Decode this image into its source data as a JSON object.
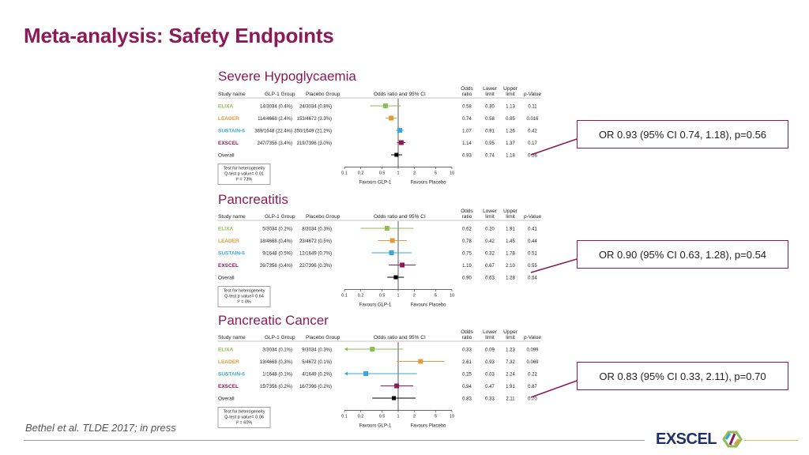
{
  "title": "Meta-analysis: Safety Endpoints",
  "footer": {
    "citation": "Bethel et al.  TLDE 2017; in press",
    "logo_text": "EXSCEL"
  },
  "colors": {
    "accent": "#8B1A56",
    "elixa": "#8fbd55",
    "leader": "#e39a3a",
    "sustain": "#3aa6d6",
    "exscel": "#8B1A56",
    "overall": "#000000"
  },
  "headers": {
    "study": "Study name",
    "glp": "GLP-1 Group",
    "placebo": "Placebo Group",
    "ci": "Odds ratio and 95% CI",
    "or1": "Odds",
    "or2": "ratio",
    "ll1": "Lower",
    "ll2": "limit",
    "ul1": "Upper",
    "ul2": "limit",
    "p": "p-Value"
  },
  "ticks": [
    "0.1",
    "0.2",
    "0.5",
    "1",
    "2",
    "5",
    "10"
  ],
  "favours": {
    "left": "Favours GLP-1",
    "right": "Favours Placebo"
  },
  "chart_data": [
    {
      "type": "forest",
      "title": "Severe Hypoglycaemia",
      "xscale": "log",
      "xlim": [
        0.1,
        10
      ],
      "studies": [
        {
          "name": "ELIXA",
          "color": "elixa",
          "glp": "14/3034 (0.4%)",
          "placebo": "24/3034 (0.8%)",
          "or": 0.58,
          "ll": 0.3,
          "ul": 1.13,
          "p": "0.11",
          "or_text": "0.58",
          "ll_text": "0.30",
          "ul_text": "1.13"
        },
        {
          "name": "LEADER",
          "color": "leader",
          "glp": "114/4668 (2.4%)",
          "placebo": "153/4672 (3.3%)",
          "or": 0.74,
          "ll": 0.58,
          "ul": 0.95,
          "p": "0.016",
          "or_text": "0.74",
          "ll_text": "0.58",
          "ul_text": "0.95"
        },
        {
          "name": "SUSTAIN-6",
          "color": "sustain",
          "glp": "369/1648 (22.4%)",
          "placebo": "350/1649 (21.2%)",
          "or": 1.07,
          "ll": 0.91,
          "ul": 1.26,
          "p": "0.42",
          "or_text": "1.07",
          "ll_text": "0.91",
          "ul_text": "1.26"
        },
        {
          "name": "EXSCEL",
          "color": "exscel",
          "glp": "247/7356 (3.4%)",
          "placebo": "219/7396 (3.0%)",
          "or": 1.14,
          "ll": 0.95,
          "ul": 1.37,
          "p": "0.17",
          "or_text": "1.14",
          "ll_text": "0.95",
          "ul_text": "1.37"
        },
        {
          "name": "Overall",
          "color": "overall",
          "glp": "",
          "placebo": "",
          "or": 0.93,
          "ll": 0.74,
          "ul": 1.18,
          "p": "0.56",
          "or_text": "0.93",
          "ll_text": "0.74",
          "ul_text": "1.18"
        }
      ],
      "heterogeneity": [
        "Test for heterogeneity",
        "Q-test p value= 0.01",
        "I² = 73%"
      ],
      "callout": "OR 0.93 (95% CI 0.74, 1.18), p=0.56"
    },
    {
      "type": "forest",
      "title": "Pancreatitis",
      "xscale": "log",
      "xlim": [
        0.1,
        10
      ],
      "studies": [
        {
          "name": "ELIXA",
          "color": "elixa",
          "glp": "5/3034 (0.2%)",
          "placebo": "8/3034 (0.3%)",
          "or": 0.62,
          "ll": 0.2,
          "ul": 1.91,
          "p": "0.41",
          "or_text": "0.62",
          "ll_text": "0.20",
          "ul_text": "1.91"
        },
        {
          "name": "LEADER",
          "color": "leader",
          "glp": "18/4668 (0.4%)",
          "placebo": "23/4672 (0.5%)",
          "or": 0.78,
          "ll": 0.42,
          "ul": 1.45,
          "p": "0.44",
          "or_text": "0.78",
          "ll_text": "0.42",
          "ul_text": "1.45"
        },
        {
          "name": "SUSTAIN-6",
          "color": "sustain",
          "glp": "9/1648 (0.5%)",
          "placebo": "12/1649 (0.7%)",
          "or": 0.75,
          "ll": 0.32,
          "ul": 1.78,
          "p": "0.51",
          "or_text": "0.75",
          "ll_text": "0.32",
          "ul_text": "1.78"
        },
        {
          "name": "EXSCEL",
          "color": "exscel",
          "glp": "26/7356 (0.4%)",
          "placebo": "22/7396 (0.3%)",
          "or": 1.19,
          "ll": 0.67,
          "ul": 2.1,
          "p": "0.55",
          "or_text": "1.19",
          "ll_text": "0.67",
          "ul_text": "2.10"
        },
        {
          "name": "Overall",
          "color": "overall",
          "glp": "",
          "placebo": "",
          "or": 0.9,
          "ll": 0.63,
          "ul": 1.28,
          "p": "0.54",
          "or_text": "0.90",
          "ll_text": "0.63",
          "ul_text": "1.28"
        }
      ],
      "heterogeneity": [
        "Test for heterogeneity",
        "Q-test p value= 0.64",
        "I² = 0%"
      ],
      "callout": "OR 0.90 (95% CI 0.63, 1.28), p=0.54"
    },
    {
      "type": "forest",
      "title": "Pancreatic Cancer",
      "xscale": "log",
      "xlim": [
        0.1,
        10
      ],
      "studies": [
        {
          "name": "ELIXA",
          "color": "elixa",
          "glp": "3/3034 (0.1%)",
          "placebo": "9/3034 (0.3%)",
          "or": 0.33,
          "ll": 0.09,
          "ul": 1.23,
          "p": "0.099",
          "or_text": "0.33",
          "ll_text": "0.09",
          "ul_text": "1.23"
        },
        {
          "name": "LEADER",
          "color": "leader",
          "glp": "13/4668 (0.3%)",
          "placebo": "5/4672 (0.1%)",
          "or": 2.61,
          "ll": 0.93,
          "ul": 7.32,
          "p": "0.069",
          "or_text": "2.61",
          "ll_text": "0.93",
          "ul_text": "7.32"
        },
        {
          "name": "SUSTAIN-6",
          "color": "sustain",
          "glp": "1/1648 (0.1%)",
          "placebo": "4/1649 (0.2%)",
          "or": 0.25,
          "ll": 0.03,
          "ul": 2.24,
          "p": "0.22",
          "or_text": "0.25",
          "ll_text": "0.03",
          "ul_text": "2.24"
        },
        {
          "name": "EXSCEL",
          "color": "exscel",
          "glp": "15/7356 (0.2%)",
          "placebo": "16/7396 (0.2%)",
          "or": 0.94,
          "ll": 0.47,
          "ul": 1.91,
          "p": "0.87",
          "or_text": "0.94",
          "ll_text": "0.47",
          "ul_text": "1.91"
        },
        {
          "name": "Overall",
          "color": "overall",
          "glp": "",
          "placebo": "",
          "or": 0.83,
          "ll": 0.33,
          "ul": 2.11,
          "p": "0.70",
          "or_text": "0.83",
          "ll_text": "0.33",
          "ul_text": "2.11"
        }
      ],
      "heterogeneity": [
        "Test for heterogeneity",
        "Q-test p value= 0.06",
        "I² = 60%"
      ],
      "callout": "OR 0.83 (95% CI 0.33, 2.11), p=0.70"
    }
  ]
}
